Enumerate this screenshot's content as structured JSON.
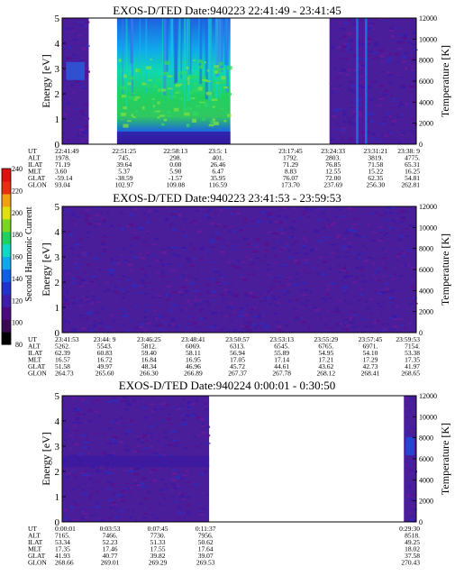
{
  "colorbar": {
    "label": "Second Harmonic Current",
    "ticks": [
      "80",
      "100",
      "120",
      "140",
      "160",
      "180",
      "200",
      "220",
      "240"
    ],
    "colors": [
      "#000000",
      "#3a0a55",
      "#4b0a7d",
      "#3e1fa6",
      "#2233cc",
      "#1060e6",
      "#10a8ec",
      "#10d8c8",
      "#20d060",
      "#7ad620",
      "#e0e010",
      "#f0a010",
      "#e83010",
      "#e01010"
    ]
  },
  "chart_data": [
    {
      "type": "heatmap",
      "title": "EXOS-D/TED   Date:940223   22:41:49 - 23:41:45",
      "ylabel": "Energy [eV]",
      "y2label": "Temperature [K]",
      "ylim": [
        0,
        5
      ],
      "y2lim": [
        0,
        12000
      ],
      "yticks": [
        "0",
        "1",
        "2",
        "3",
        "4",
        "5"
      ],
      "y2ticks": [
        "0",
        "2000",
        "4000",
        "6000",
        "8000",
        "10000",
        "12000"
      ],
      "segments": [
        {
          "start": 0.0,
          "end": 0.075,
          "style": "quiet",
          "blob": {
            "y": 2.9,
            "color": "#2a5cdc"
          }
        },
        {
          "start": 0.155,
          "end": 0.475,
          "style": "active"
        },
        {
          "start": 0.755,
          "end": 1.0,
          "style": "quiet",
          "streaks": [
            0.83,
            0.855
          ]
        }
      ],
      "orbit_labels": [
        "UT",
        "ALT",
        "ILAT",
        "MLT",
        "GLAT",
        "GLON"
      ],
      "orbit_columns": [
        {
          "pos": 0.0,
          "values": [
            "22:41:49",
            "1978.",
            "71.19",
            "3.60",
            "-59.14",
            "93.04"
          ]
        },
        {
          "pos": 0.175,
          "values": [
            "22:51:25",
            "745.",
            "39.64",
            "5.37",
            "-38.59",
            "102.97"
          ]
        },
        {
          "pos": 0.32,
          "values": [
            "22:58:13",
            "298.",
            "0.00",
            "5.90",
            "-1.57",
            "109.08"
          ]
        },
        {
          "pos": 0.44,
          "values": [
            "23:5: 1",
            "401.",
            "26.46",
            "6.47",
            "35.95",
            "116.59"
          ]
        },
        {
          "pos": 0.645,
          "values": [
            "23:17:45",
            "1792.",
            "71.29",
            "8.83",
            "76.07",
            "173.70"
          ]
        },
        {
          "pos": 0.765,
          "values": [
            "23:24:33",
            "2803.",
            "76.85",
            "12.55",
            "72.00",
            "237.69"
          ]
        },
        {
          "pos": 0.885,
          "values": [
            "23:31:21",
            "3819.",
            "71.58",
            "15.22",
            "62.35",
            "256.30"
          ]
        },
        {
          "pos": 1.0,
          "values": [
            "23:38: 9",
            "4775.",
            "65.31",
            "16.25",
            "54.81",
            "262.81"
          ]
        }
      ]
    },
    {
      "type": "heatmap",
      "title": "EXOS-D/TED   Date:940223   23:41:53 - 23:59:53",
      "ylabel": "Energy [eV]",
      "y2label": "Temperature [K]",
      "ylim": [
        0,
        5
      ],
      "y2lim": [
        0,
        12000
      ],
      "yticks": [
        "0",
        "1",
        "2",
        "3",
        "4",
        "5"
      ],
      "y2ticks": [
        "0",
        "2000",
        "4000",
        "6000",
        "8000",
        "10000",
        "12000"
      ],
      "segments": [
        {
          "start": 0.0,
          "end": 1.0,
          "style": "quiet"
        }
      ],
      "orbit_labels": [
        "UT",
        "ALT",
        "ILAT",
        "MLT",
        "GLAT",
        "GLON"
      ],
      "orbit_columns": [
        {
          "pos": 0.0,
          "values": [
            "23:41:53",
            "5262.",
            "62.39",
            "16.57",
            "51.58",
            "264.73"
          ]
        },
        {
          "pos": 0.12,
          "values": [
            "23:44: 9",
            "5543.",
            "60.83",
            "16.72",
            "49.97",
            "265.60"
          ]
        },
        {
          "pos": 0.245,
          "values": [
            "23:46:25",
            "5812.",
            "59.40",
            "16.84",
            "48.34",
            "266.30"
          ]
        },
        {
          "pos": 0.37,
          "values": [
            "23:48:41",
            "6069.",
            "58.11",
            "16.95",
            "46.96",
            "266.89"
          ]
        },
        {
          "pos": 0.495,
          "values": [
            "23:50:57",
            "6313.",
            "56.94",
            "17.05",
            "45.72",
            "267.37"
          ]
        },
        {
          "pos": 0.62,
          "values": [
            "23:53:13",
            "6545.",
            "55.89",
            "17.14",
            "44.61",
            "267.78"
          ]
        },
        {
          "pos": 0.745,
          "values": [
            "23:55:29",
            "6765.",
            "54.95",
            "17.21",
            "43.62",
            "268.12"
          ]
        },
        {
          "pos": 0.87,
          "values": [
            "23:57:45",
            "6971.",
            "54.10",
            "17.29",
            "42.73",
            "268.41"
          ]
        },
        {
          "pos": 1.0,
          "values": [
            "23:59:53",
            "7154.",
            "53.38",
            "17.35",
            "41.97",
            "268.65"
          ]
        }
      ]
    },
    {
      "type": "heatmap",
      "title": "EXOS-D/TED   Date:940224   0:00:01 - 0:30:50",
      "ylabel": "Energy [eV]",
      "y2label": "Temperature [K]",
      "ylim": [
        0,
        5
      ],
      "y2lim": [
        0,
        12000
      ],
      "yticks": [
        "0",
        "1",
        "2",
        "3",
        "4",
        "5"
      ],
      "y2ticks": [
        "0",
        "2000",
        "4000",
        "6000",
        "8000",
        "10000",
        "12000"
      ],
      "segments": [
        {
          "start": 0.0,
          "end": 0.415,
          "style": "quiet",
          "band": {
            "y": 2.4,
            "color": "#3a1aa0"
          }
        },
        {
          "start": 0.965,
          "end": 1.0,
          "style": "quiet",
          "blob": {
            "y": 3.0,
            "color": "#1b50e0"
          }
        }
      ],
      "orbit_labels": [
        "UT",
        "ALT",
        "ILAT",
        "MLT",
        "GLAT",
        "GLON"
      ],
      "orbit_columns": [
        {
          "pos": 0.0,
          "values": [
            "0:00:01",
            "7165.",
            "53.34",
            "17.35",
            "41.93",
            "268.66"
          ]
        },
        {
          "pos": 0.135,
          "values": [
            "0:03:53",
            "7466.",
            "52.23",
            "17.46",
            "40.77",
            "269.01"
          ]
        },
        {
          "pos": 0.27,
          "values": [
            "0:07:45",
            "7730.",
            "51.33",
            "17.55",
            "39.82",
            "269.29"
          ]
        },
        {
          "pos": 0.405,
          "values": [
            "0:11:37",
            "7956.",
            "50.62",
            "17.64",
            "39.07",
            "269.53"
          ]
        },
        {
          "pos": 1.0,
          "values": [
            "0:29:30",
            "8518.",
            "49.25",
            "18.02",
            "37.58",
            "270.43"
          ]
        }
      ]
    }
  ]
}
